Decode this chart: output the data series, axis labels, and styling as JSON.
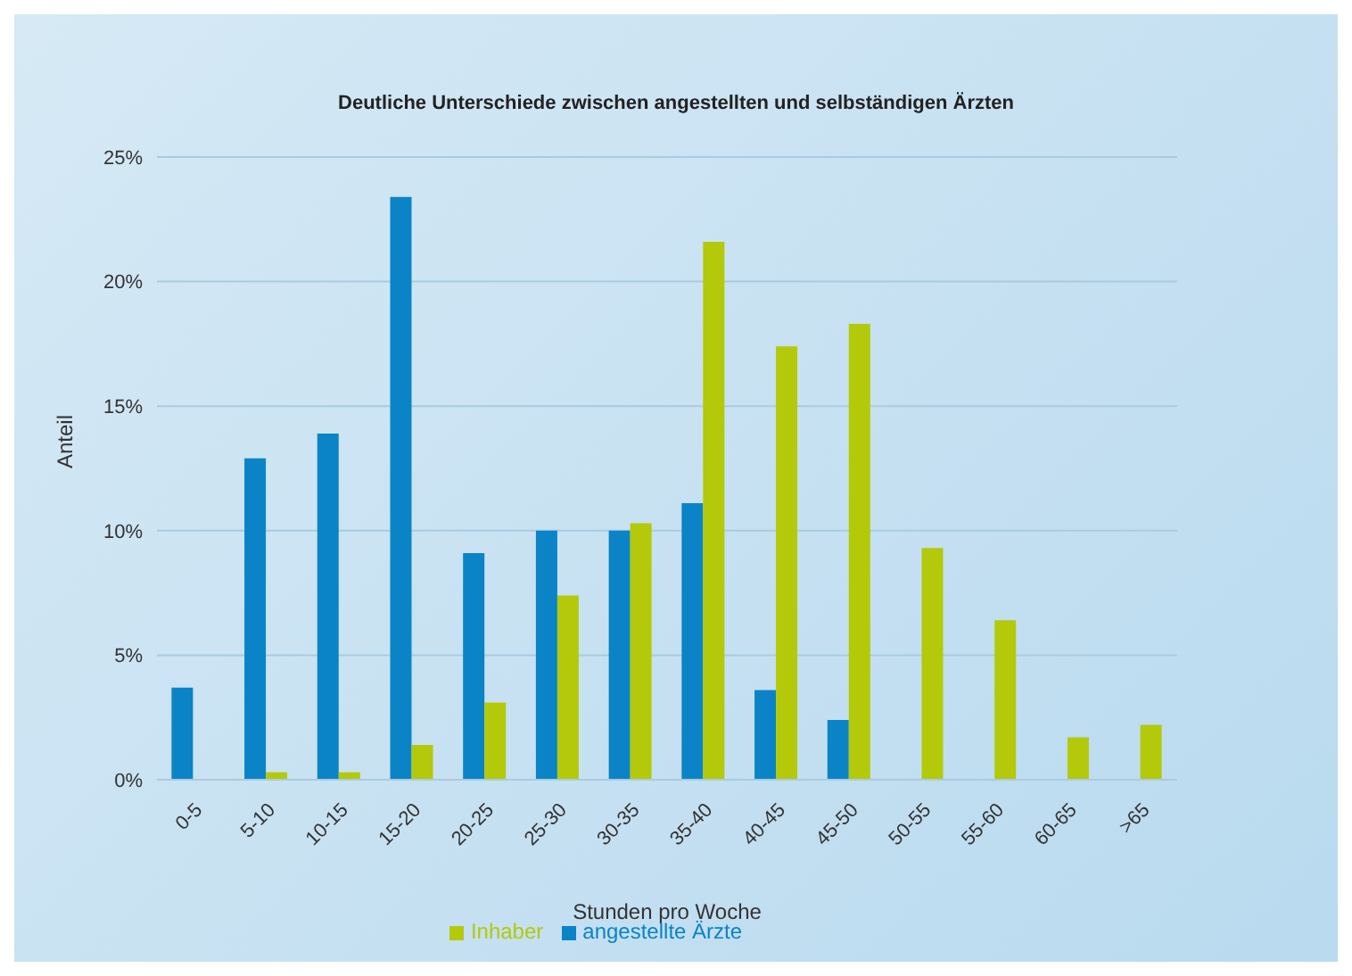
{
  "chart_data": {
    "type": "bar",
    "title": "Deutliche Unterschiede zwischen angestellten und selbständigen Ärzten",
    "xlabel": "Stunden pro Woche",
    "ylabel": "Anteil",
    "categories": [
      "0-5",
      "5-10",
      "10-15",
      "15-20",
      "20-25",
      "25-30",
      "30-35",
      "35-40",
      "40-45",
      "45-50",
      "50-55",
      "55-60",
      "60-65",
      ">65"
    ],
    "series": [
      {
        "name": "angestellte Ärzte",
        "color": "#0a84c6",
        "values": [
          3.7,
          12.9,
          13.9,
          23.4,
          9.1,
          10.0,
          10.0,
          11.1,
          3.6,
          2.4,
          null,
          null,
          null,
          null
        ]
      },
      {
        "name": "Inhaber",
        "color": "#b3c90a",
        "values": [
          null,
          0.3,
          0.3,
          1.4,
          3.1,
          7.4,
          10.3,
          21.6,
          17.4,
          18.3,
          9.3,
          6.4,
          1.7,
          2.2
        ]
      }
    ],
    "ylim": [
      0,
      25
    ],
    "yticks": [
      {
        "value": 0,
        "label": "0%"
      },
      {
        "value": 5,
        "label": "5%"
      },
      {
        "value": 10,
        "label": "10%"
      },
      {
        "value": 15,
        "label": "15%"
      },
      {
        "value": 20,
        "label": "20%"
      },
      {
        "value": 25,
        "label": "25%"
      }
    ],
    "grid": "y",
    "legend": "bottom"
  }
}
